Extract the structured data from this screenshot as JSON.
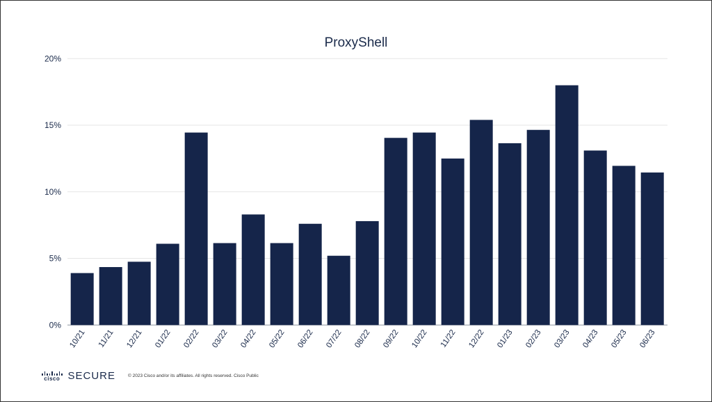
{
  "chart_data": {
    "type": "bar",
    "title": "ProxyShell",
    "xlabel": "",
    "ylabel": "",
    "ylim": [
      0,
      20
    ],
    "yticks": [
      "0%",
      "5%",
      "10%",
      "15%",
      "20%"
    ],
    "ytick_values": [
      0,
      5,
      10,
      15,
      20
    ],
    "grid": true,
    "bar_color": "#15254a",
    "categories": [
      "10/21",
      "11/21",
      "12/21",
      "01/22",
      "02/22",
      "03/22",
      "04/22",
      "05/22",
      "06/22",
      "07/22",
      "08/22",
      "09/22",
      "10/22",
      "11/22",
      "12/22",
      "01/23",
      "02/23",
      "03/23",
      "04/23",
      "05/23",
      "06/23"
    ],
    "values": [
      3.9,
      4.35,
      4.75,
      6.1,
      14.45,
      6.15,
      8.3,
      6.15,
      7.6,
      5.2,
      7.8,
      14.05,
      14.45,
      12.5,
      15.4,
      13.65,
      14.65,
      18.0,
      13.1,
      11.95,
      11.45
    ]
  },
  "footer": {
    "logo_text": "cisco",
    "brand": "SECURE",
    "copyright": "© 2023  Cisco and/or its affiliates. All rights reserved.   Cisco Public"
  }
}
